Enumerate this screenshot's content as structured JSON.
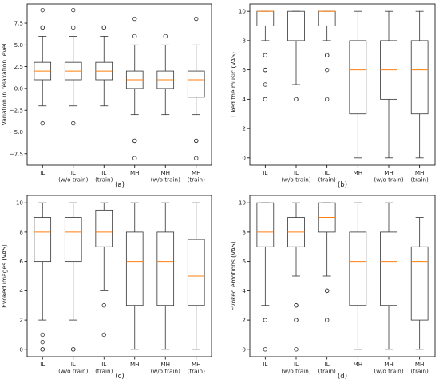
{
  "chart_data": [
    {
      "id": "a",
      "type": "box",
      "panel_label": "(a)",
      "ylabel": "Variation in relaxation level",
      "ylim": [
        -8.8,
        9.7
      ],
      "yticks": [
        -7.5,
        -5,
        -2.5,
        0,
        2.5,
        5,
        7.5
      ],
      "ytick_labels": [
        "−7.5",
        "−5.0",
        "−2.5",
        "0.0",
        "2.5",
        "5.0",
        "7.5"
      ],
      "categories": [
        [
          "IL"
        ],
        [
          "IL",
          "(w/o train)"
        ],
        [
          "IL",
          "(train)"
        ],
        [
          "MH"
        ],
        [
          "MH",
          "(w/o train)"
        ],
        [
          "MH",
          "(train)"
        ]
      ],
      "boxes": [
        {
          "whislo": -2,
          "q1": 1,
          "med": 2,
          "q3": 3,
          "whishi": 6,
          "fliers": [
            9,
            7,
            7,
            -4
          ]
        },
        {
          "whislo": -2,
          "q1": 1,
          "med": 2,
          "q3": 3,
          "whishi": 6,
          "fliers": [
            9,
            7,
            -4
          ]
        },
        {
          "whislo": -2,
          "q1": 1,
          "med": 2,
          "q3": 3,
          "whishi": 6,
          "fliers": [
            7,
            7
          ]
        },
        {
          "whislo": -3,
          "q1": 0,
          "med": 1,
          "q3": 2,
          "whishi": 5,
          "fliers": [
            8,
            6,
            -6,
            -6,
            -8
          ]
        },
        {
          "whislo": -3,
          "q1": 0,
          "med": 1,
          "q3": 2,
          "whishi": 5,
          "fliers": [
            6
          ]
        },
        {
          "whislo": -3,
          "q1": -1,
          "med": 1,
          "q3": 2,
          "whishi": 5,
          "fliers": [
            8,
            -6,
            -6,
            -8
          ]
        }
      ]
    },
    {
      "id": "b",
      "type": "box",
      "panel_label": "(b)",
      "ylabel": "Liked the music (VAS)",
      "ylim": [
        -0.5,
        10.5
      ],
      "yticks": [
        0,
        2,
        4,
        6,
        8,
        10
      ],
      "ytick_labels": [
        "0",
        "2",
        "4",
        "6",
        "8",
        "10"
      ],
      "categories": [
        [
          "IL"
        ],
        [
          "IL",
          "(w/o train)"
        ],
        [
          "IL",
          "(train)"
        ],
        [
          "MH"
        ],
        [
          "MH",
          "(w/o train)"
        ],
        [
          "MH",
          "(train)"
        ]
      ],
      "boxes": [
        {
          "whislo": 8,
          "q1": 9,
          "med": 10,
          "q3": 10,
          "whishi": 10,
          "fliers": [
            7,
            7,
            6,
            6,
            5,
            4,
            4
          ]
        },
        {
          "whislo": 5,
          "q1": 8,
          "med": 9,
          "q3": 10,
          "whishi": 10,
          "fliers": [
            4,
            4
          ]
        },
        {
          "whislo": 8,
          "q1": 9,
          "med": 10,
          "q3": 10,
          "whishi": 10,
          "fliers": [
            7,
            7,
            6,
            4
          ]
        },
        {
          "whislo": 0,
          "q1": 3,
          "med": 6,
          "q3": 8,
          "whishi": 10,
          "fliers": []
        },
        {
          "whislo": 0,
          "q1": 4,
          "med": 6,
          "q3": 8,
          "whishi": 10,
          "fliers": []
        },
        {
          "whislo": 0,
          "q1": 3,
          "med": 6,
          "q3": 8,
          "whishi": 10,
          "fliers": []
        }
      ]
    },
    {
      "id": "c",
      "type": "box",
      "panel_label": "(c)",
      "ylabel": "Evoked images (VAS)",
      "ylim": [
        -0.5,
        10.5
      ],
      "yticks": [
        0,
        2,
        4,
        6,
        8,
        10
      ],
      "ytick_labels": [
        "0",
        "2",
        "4",
        "6",
        "8",
        "10"
      ],
      "categories": [
        [
          "IL"
        ],
        [
          "IL",
          "(w/o train)"
        ],
        [
          "IL",
          "(train)"
        ],
        [
          "MH"
        ],
        [
          "MH",
          "(w/o train)"
        ],
        [
          "MH",
          "(train)"
        ]
      ],
      "boxes": [
        {
          "whislo": 2,
          "q1": 6,
          "med": 8,
          "q3": 9,
          "whishi": 10,
          "fliers": [
            1,
            0.5,
            0,
            0
          ]
        },
        {
          "whislo": 2,
          "q1": 6,
          "med": 8,
          "q3": 9,
          "whishi": 10,
          "fliers": [
            0,
            0
          ]
        },
        {
          "whislo": 4,
          "q1": 7,
          "med": 8,
          "q3": 9.5,
          "whishi": 10,
          "fliers": [
            3,
            1
          ]
        },
        {
          "whislo": 0,
          "q1": 3,
          "med": 6,
          "q3": 8,
          "whishi": 10,
          "fliers": []
        },
        {
          "whislo": 0,
          "q1": 3,
          "med": 6,
          "q3": 8,
          "whishi": 10,
          "fliers": []
        },
        {
          "whislo": 0,
          "q1": 3,
          "med": 5,
          "q3": 7.5,
          "whishi": 10,
          "fliers": []
        }
      ]
    },
    {
      "id": "d",
      "type": "box",
      "panel_label": "(d)",
      "ylabel": "Evoked emotions (VAS)",
      "ylim": [
        -0.5,
        10.5
      ],
      "yticks": [
        0,
        2,
        4,
        6,
        8,
        10
      ],
      "ytick_labels": [
        "0",
        "2",
        "4",
        "6",
        "8",
        "10"
      ],
      "categories": [
        [
          "IL"
        ],
        [
          "IL",
          "(w/o train)"
        ],
        [
          "IL",
          "(train)"
        ],
        [
          "MH"
        ],
        [
          "MH",
          "(w/o train)"
        ],
        [
          "MH",
          "(train)"
        ]
      ],
      "boxes": [
        {
          "whislo": 3,
          "q1": 7,
          "med": 8,
          "q3": 10,
          "whishi": 10,
          "fliers": [
            2,
            2,
            0
          ]
        },
        {
          "whislo": 5,
          "q1": 7,
          "med": 8,
          "q3": 9,
          "whishi": 10,
          "fliers": [
            3,
            3,
            2,
            2,
            0
          ]
        },
        {
          "whislo": 5,
          "q1": 8,
          "med": 9,
          "q3": 10,
          "whishi": 10,
          "fliers": [
            4,
            4,
            2
          ]
        },
        {
          "whislo": 0,
          "q1": 3,
          "med": 6,
          "q3": 8,
          "whishi": 10,
          "fliers": []
        },
        {
          "whislo": 0,
          "q1": 3,
          "med": 6,
          "q3": 8,
          "whishi": 10,
          "fliers": []
        },
        {
          "whislo": 0,
          "q1": 2,
          "med": 6,
          "q3": 7,
          "whishi": 9,
          "fliers": []
        }
      ]
    }
  ],
  "colors": {
    "box": "#333333",
    "median": "#ff7f0e",
    "axis": "#000000",
    "background": "#ffffff"
  }
}
